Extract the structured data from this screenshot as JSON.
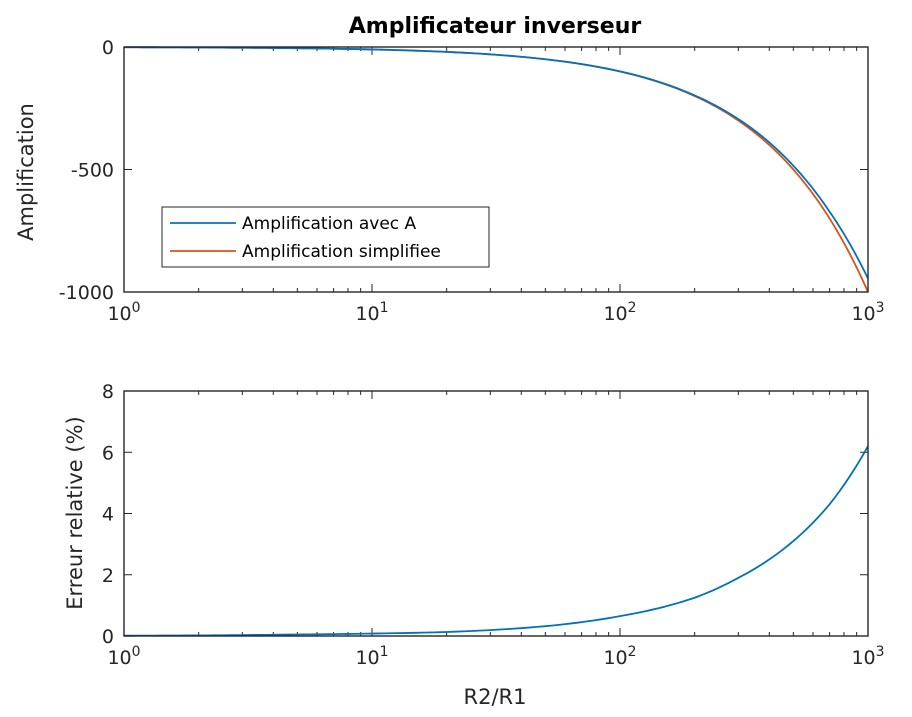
{
  "chart_data": [
    {
      "type": "line",
      "title": "Amplificateur inverseur",
      "xlabel": "",
      "ylabel": "Amplification",
      "xscale": "log",
      "xlim": [
        1,
        1000
      ],
      "ylim": [
        -1000,
        0
      ],
      "xticks": [
        "10^0",
        "10^1",
        "10^2",
        "10^3"
      ],
      "yticks": [
        "0",
        "-500",
        "-1000"
      ],
      "grid": false,
      "legend_position": "lower-left",
      "series": [
        {
          "name": "Amplification avec A",
          "color": "#0072bd",
          "x": [
            1,
            2,
            5,
            10,
            20,
            50,
            100,
            200,
            300,
            500,
            700,
            1000
          ],
          "y": [
            -1,
            -2,
            -5,
            -10,
            -20,
            -50,
            -99.3,
            -197.6,
            -294.3,
            -484.8,
            -672.3,
            -945
          ]
        },
        {
          "name": "Amplification simplifiee",
          "color": "#d95319",
          "x": [
            1,
            2,
            5,
            10,
            20,
            50,
            100,
            200,
            300,
            500,
            700,
            1000
          ],
          "y": [
            -1,
            -2,
            -5,
            -10,
            -20,
            -50,
            -100,
            -200,
            -300,
            -500,
            -700,
            -1000
          ]
        }
      ]
    },
    {
      "type": "line",
      "title": "",
      "xlabel": "R2/R1",
      "ylabel": "Erreur relative (%)",
      "xscale": "log",
      "xlim": [
        1,
        1000
      ],
      "ylim": [
        0,
        8
      ],
      "xticks": [
        "10^0",
        "10^1",
        "10^2",
        "10^3"
      ],
      "yticks": [
        "0",
        "2",
        "4",
        "6",
        "8"
      ],
      "grid": false,
      "series": [
        {
          "color": "#0072bd",
          "x": [
            1,
            2,
            5,
            10,
            20,
            50,
            100,
            200,
            300,
            500,
            700,
            1000
          ],
          "y": [
            0.01,
            0.02,
            0.05,
            0.08,
            0.13,
            0.32,
            0.65,
            1.25,
            1.9,
            3.1,
            4.3,
            6.2
          ]
        }
      ]
    }
  ]
}
